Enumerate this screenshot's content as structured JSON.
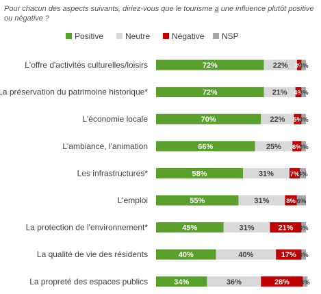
{
  "question": {
    "part1": "Pour chacun des aspects suivants, diriez-vous que le tourisme ",
    "underlined": "a",
    "part2": " une influence plutôt positive ou négative ?"
  },
  "chart_data": {
    "type": "bar",
    "stacked": true,
    "orientation": "horizontal",
    "xlim": [
      0,
      100
    ],
    "legend_position": "top",
    "categories": [
      "L'offre  d'activités culturelles/loisirs",
      "La préservation du patrimoine historique*",
      "L'économie locale",
      "L'ambiance, l'animation",
      "Les infrastructures*",
      "L'emploi",
      "La protection de l'environnement*",
      "La qualité de vie des résidents",
      "La propreté des espaces publics"
    ],
    "series": [
      {
        "name": "Positive",
        "color": "#5aa02c",
        "label_color": "#ffffff",
        "values": [
          72,
          72,
          70,
          66,
          58,
          55,
          45,
          40,
          34
        ]
      },
      {
        "name": "Neutre",
        "color": "#d9d9d9",
        "label_color": "#404040",
        "values": [
          22,
          21,
          22,
          25,
          31,
          31,
          31,
          40,
          36
        ]
      },
      {
        "name": "Négative",
        "color": "#c00000",
        "label_color": "#ffffff",
        "values": [
          3,
          4,
          5,
          6,
          7,
          8,
          21,
          17,
          28
        ]
      },
      {
        "name": "NSP",
        "color": "#a6a6a6",
        "label_color": "#404040",
        "values": [
          3,
          3,
          3,
          3,
          4,
          6,
          3,
          3,
          3
        ]
      }
    ],
    "data_labels": [
      [
        "72%",
        "22%",
        "3%",
        "3%"
      ],
      [
        "72%",
        "21%",
        "4%",
        "3%"
      ],
      [
        "70%",
        "22%",
        "5%",
        "3%"
      ],
      [
        "66%",
        "25%",
        "6%",
        "3%"
      ],
      [
        "58%",
        "31%",
        "7%",
        "4%"
      ],
      [
        "55%",
        "31%",
        "8%",
        "6%"
      ],
      [
        "45%",
        "31%",
        "21%",
        "3%"
      ],
      [
        "40%",
        "40%",
        "17%",
        "3%"
      ],
      [
        "34%",
        "36%",
        "28%",
        "3%"
      ]
    ]
  }
}
